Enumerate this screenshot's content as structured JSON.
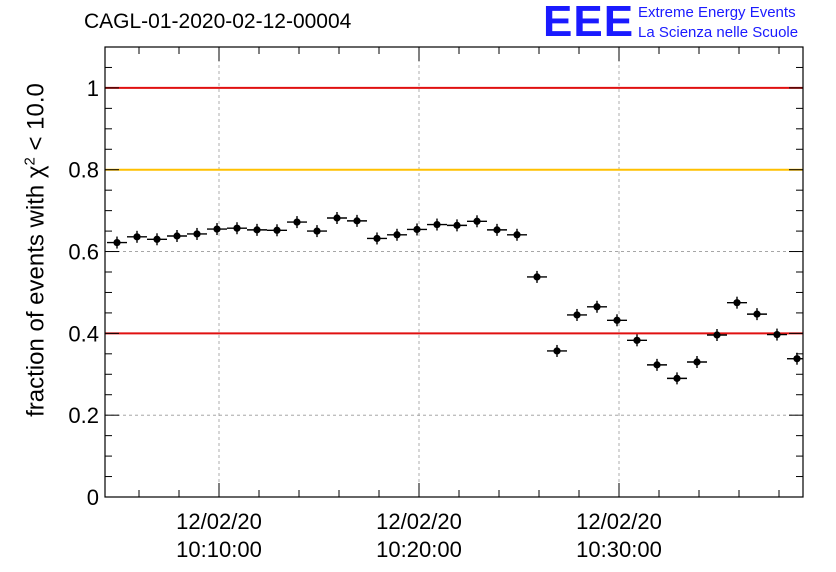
{
  "title": "CAGL-01-2020-02-12-00004",
  "logo": {
    "mark": "EEE",
    "line1": "Extreme Energy Events",
    "line2": "La Scienza nelle Scuole"
  },
  "colors": {
    "threshold_red": "#e01010",
    "threshold_yellow": "#ffc000",
    "logo_blue": "#1a1aff",
    "grid": "#999999",
    "marker": "#000000"
  },
  "chart_data": {
    "type": "scatter",
    "title": "CAGL-01-2020-02-12-00004",
    "ylabel_parts": {
      "prefix": "fraction of events with ",
      "chi": "χ",
      "sup": "2",
      "suffix": " < 10.0"
    },
    "xlabel": "",
    "x_unit": "minutes past 10:00:00 on 12/02/20",
    "xlim": [
      4.3,
      39.2
    ],
    "ylim": [
      0,
      1.1
    ],
    "y_ticks": [
      "0",
      "0.2",
      "0.4",
      "0.6",
      "0.8",
      "1"
    ],
    "x_ticks": [
      {
        "x": 10,
        "date": "12/02/20",
        "time": "10:10:00"
      },
      {
        "x": 20,
        "date": "12/02/20",
        "time": "10:20:00"
      },
      {
        "x": 30,
        "date": "12/02/20",
        "time": "10:30:00"
      }
    ],
    "grid": true,
    "threshold_lines": [
      {
        "y": 1.0,
        "color": "red"
      },
      {
        "y": 0.8,
        "color": "yellow"
      },
      {
        "y": 0.4,
        "color": "red"
      }
    ],
    "bin_halfwidth": 0.5,
    "series": [
      {
        "x": [
          4.9,
          5.9,
          6.9,
          7.9,
          8.9,
          9.9,
          10.9,
          11.9,
          12.9,
          13.9,
          14.9,
          15.9,
          16.9,
          17.9,
          18.9,
          19.9,
          20.9,
          21.9,
          22.9,
          23.9,
          24.9,
          25.9,
          26.9,
          27.9,
          28.9,
          29.9,
          30.9,
          31.9,
          32.9,
          33.9,
          34.9,
          35.9,
          36.9,
          37.9,
          38.9
        ],
        "y": [
          0.622,
          0.636,
          0.63,
          0.638,
          0.643,
          0.655,
          0.657,
          0.653,
          0.652,
          0.672,
          0.65,
          0.682,
          0.675,
          0.632,
          0.641,
          0.654,
          0.666,
          0.664,
          0.674,
          0.653,
          0.641,
          0.538,
          0.357,
          0.445,
          0.465,
          0.432,
          0.383,
          0.323,
          0.29,
          0.33,
          0.396,
          0.475,
          0.447,
          0.397,
          0.338
        ]
      }
    ]
  }
}
